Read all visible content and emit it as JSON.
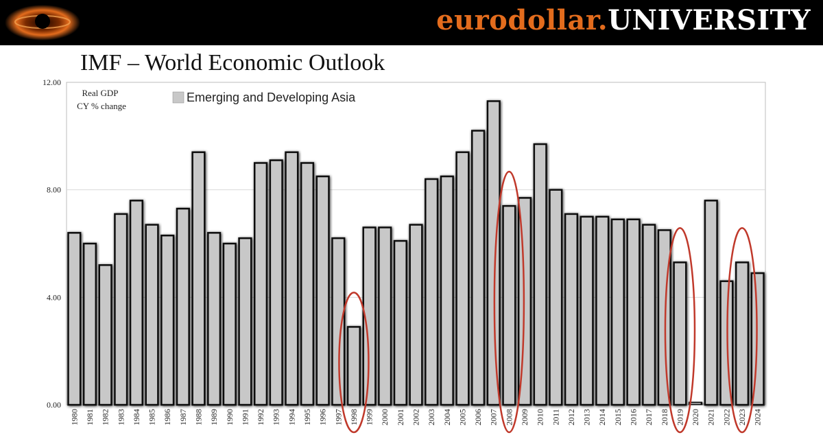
{
  "header": {
    "brand_prefix": "eurodollar.",
    "brand_suffix": "UNIVERSITY",
    "logo_icon": "black-hole-logo-icon"
  },
  "page_title": "IMF – World Economic Outlook",
  "colors": {
    "banner_bg": "#000000",
    "brand_accent": "#e36c1d",
    "bar_fill": "#c8c8c8",
    "bar_stroke": "#111111",
    "highlight_ellipse": "#c0392b"
  },
  "chart_data": {
    "type": "bar",
    "ylabel_lines": [
      "Real GDP",
      "CY % change"
    ],
    "ylim": [
      0,
      12
    ],
    "yticks": [
      "0.00",
      "4.00",
      "8.00",
      "12.00"
    ],
    "grid": true,
    "legend_position": "top-left",
    "series": [
      {
        "name": "Emerging and Developing Asia",
        "values": [
          6.4,
          6.0,
          5.2,
          7.1,
          7.6,
          6.7,
          6.3,
          7.3,
          9.4,
          6.4,
          6.0,
          6.2,
          9.0,
          9.1,
          9.4,
          9.0,
          8.5,
          6.2,
          2.9,
          6.6,
          6.6,
          6.1,
          6.7,
          8.4,
          8.5,
          9.4,
          10.2,
          11.3,
          7.4,
          7.7,
          9.7,
          8.0,
          7.1,
          7.0,
          7.0,
          6.9,
          6.9,
          6.7,
          6.5,
          5.3,
          0.1,
          7.6,
          4.6,
          5.3,
          4.9
        ]
      }
    ],
    "categories": [
      "1980",
      "1981",
      "1982",
      "1983",
      "1984",
      "1985",
      "1986",
      "1987",
      "1988",
      "1989",
      "1990",
      "1991",
      "1992",
      "1993",
      "1994",
      "1995",
      "1996",
      "1997",
      "1998",
      "1999",
      "2000",
      "2001",
      "2002",
      "2003",
      "2004",
      "2005",
      "2006",
      "2007",
      "2008",
      "2009",
      "2010",
      "2011",
      "2012",
      "2013",
      "2014",
      "2015",
      "2016",
      "2017",
      "2018",
      "2019",
      "2020",
      "2021",
      "2022",
      "2023",
      "2024"
    ],
    "highlighted_years": [
      "1998",
      "2008",
      "2019",
      "2023"
    ]
  }
}
